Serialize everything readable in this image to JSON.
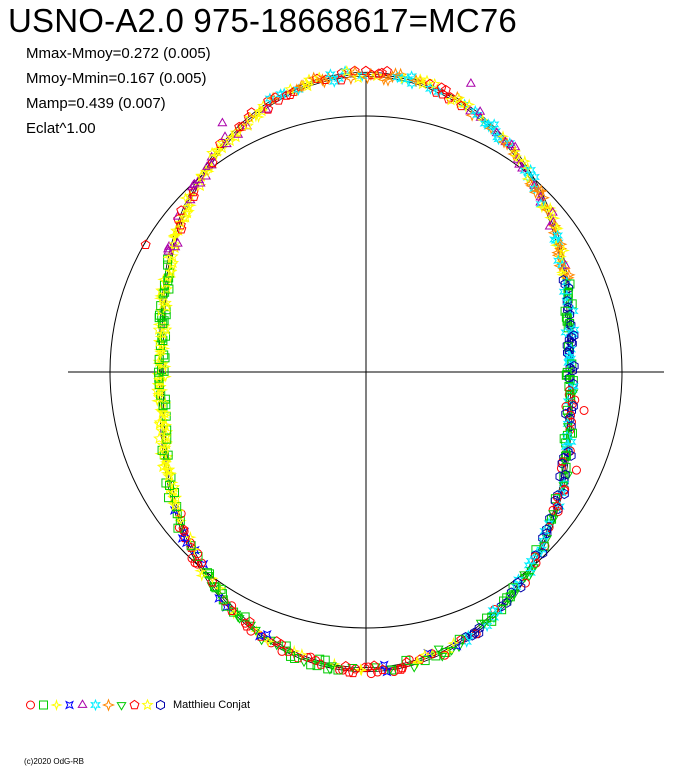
{
  "title": "USNO-A2.0 975-18668617=MC76",
  "stats": [
    "Mmax-Mmoy=0.272 (0.005)",
    "Mmoy-Mmin=0.167 (0.005)",
    "Mamp=0.439 (0.007)",
    "Eclat^1.00"
  ],
  "legend": {
    "label": "Matthieu Conjat",
    "markers": [
      {
        "shape": "circle",
        "color": "#ff0000"
      },
      {
        "shape": "square",
        "color": "#00cc00"
      },
      {
        "shape": "cross",
        "color": "#ffff00"
      },
      {
        "shape": "star4",
        "color": "#0000ff"
      },
      {
        "shape": "triangle-up",
        "color": "#aa00aa"
      },
      {
        "shape": "star6",
        "color": "#00eeff"
      },
      {
        "shape": "diamond-star",
        "color": "#ff8800"
      },
      {
        "shape": "triangle-down",
        "color": "#00cc00"
      },
      {
        "shape": "pentagon",
        "color": "#ff0000"
      },
      {
        "shape": "star5",
        "color": "#ffff00"
      },
      {
        "shape": "hexagon",
        "color": "#0000aa"
      }
    ]
  },
  "copyright": "(c)2020 OdG-RB",
  "chart_data": {
    "type": "scatter",
    "description_of_axes": "polar light-curve plot: angle = phase, radius = relative magnitude",
    "reference_circle_radius": 1.0,
    "stats": {
      "mmax_mmoy": 0.272,
      "mmoy_mmin": 0.167,
      "mamp": 0.439,
      "eclat_power": 1.0
    },
    "curve_shape": {
      "top": 1.163,
      "right": 0.8,
      "bottom": 1.163,
      "left": 0.8
    },
    "observer": "Matthieu Conjat",
    "marker_count": 11
  }
}
